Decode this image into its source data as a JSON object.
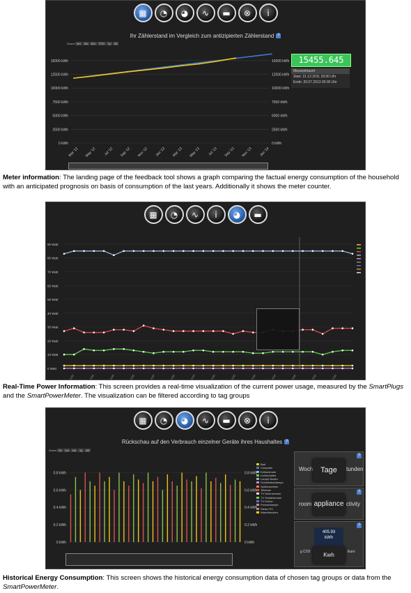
{
  "panel1": {
    "toolbar": [
      {
        "icon": "calendar-icon"
      },
      {
        "icon": "gauge-icon"
      },
      {
        "icon": "gauge-history-icon"
      },
      {
        "icon": "pulse-icon"
      },
      {
        "icon": "plug-icon"
      },
      {
        "icon": "cancel-icon"
      },
      {
        "icon": "info-icon"
      }
    ],
    "title": "Ihr Zählerstand im Vergleich zum antizipierten Zählerstand",
    "zoom_label": "Zoom",
    "counter": "15455.645",
    "period_label": "Messzeitraum",
    "start": "Start: 21.12.2011 18:00 Uhr",
    "end": "Ende: 20.07.2013 00:00 Uhr",
    "caption_bold": "Meter information",
    "caption_text": ": The landing page of the feedback tool shows a graph comparing the factual energy consumption of the household with an anticipated prognosis on basis of consumption of the last years. Additionally it shows the meter counter."
  },
  "panel2": {
    "toolbar": [
      {
        "icon": "calendar-icon"
      },
      {
        "icon": "gauge-icon"
      },
      {
        "icon": "pulse-icon"
      },
      {
        "icon": "info-icon"
      },
      {
        "icon": "gauge-history-icon"
      },
      {
        "icon": "plug-icon"
      }
    ],
    "caption_bold": "Real-Time Power Information",
    "caption_text_1": ": This screen provides a real-time visualization of the current power usage, measured by the ",
    "caption_italic_1": "SmartPlugs",
    "caption_text_2": " and the ",
    "caption_italic_2": "SmartPowerMeter",
    "caption_text_3": ". The visualization can be filtered according to tag groups"
  },
  "panel3": {
    "toolbar": [
      {
        "icon": "calendar-icon"
      },
      {
        "icon": "gauge-icon"
      },
      {
        "icon": "gauge-history-icon"
      },
      {
        "icon": "pulse-icon"
      },
      {
        "icon": "plug-icon"
      },
      {
        "icon": "cancel-icon"
      },
      {
        "icon": "info-icon"
      }
    ],
    "title": "Rückschau auf den Verbrauch einzelner Geräte ihres Haushaltes",
    "zoom_label": "Zoom",
    "tab_left": "Woche",
    "tab_main": "Tage",
    "tab_right": "tunden",
    "group_left": "room",
    "group_main": "appliance",
    "group_right": "ctivity",
    "value": "405.93",
    "value_unit": "kWh",
    "unit_left": "g CO2",
    "unit_main": "Kwh",
    "unit_right": "Euro",
    "legend": [
      "Bad",
      "Computer",
      "Kühlschrank",
      "Lichtschalter",
      "Lampe Boden",
      "Schreibtischlampe",
      "Spülmaschine",
      "Telefone",
      "TV Wohnzimmer",
      "TV Schlafzimmer",
      "TV Küche",
      "Fernsehlampe",
      "Steam PC",
      "Waschbecken"
    ],
    "caption_bold": "Historical Energy Consumption",
    "caption_text": ": This screen shows the historical energy consumption data of chosen tag groups or data from the ",
    "caption_italic": "SmartPowerMeter",
    "caption_end": "."
  },
  "chart_data": [
    {
      "type": "line",
      "title": "Ihr Zählerstand im Vergleich zum antizipierten Zählerstand",
      "y_ticks": [
        "0 kWh",
        "2500 kWh",
        "5000 kWh",
        "7500 kWh",
        "10000 kWh",
        "12500 kWh",
        "15000 kWh"
      ],
      "x_ticks": [
        "Mar '12",
        "May '12",
        "Jul '12",
        "Sep '12",
        "Nov '12",
        "Jan '13",
        "Mar '13",
        "May '13",
        "Jul '13",
        "Sep '13",
        "Nov '13",
        "Jan '14"
      ],
      "ylim": [
        0,
        17000
      ],
      "series": [
        {
          "color": "#3a7bd5",
          "values": [
            11800,
            12200,
            12600,
            13000,
            13400,
            13800,
            14200,
            14600,
            15000,
            15400,
            15800,
            16200
          ]
        },
        {
          "color": "#f0c419",
          "values": [
            11800,
            12150,
            12550,
            12950,
            13300,
            13650,
            14050,
            14400,
            14900,
            15455
          ]
        }
      ]
    },
    {
      "type": "line",
      "y_ticks": [
        "0 Watt",
        "10 Watt",
        "20 Watt",
        "30 Watt",
        "40 Watt",
        "50 Watt",
        "60 Watt",
        "70 Watt",
        "80 Watt",
        "90 Watt"
      ],
      "ylim": [
        0,
        95
      ],
      "series": [
        {
          "color": "#9ab4e0",
          "values": [
            83,
            85,
            85,
            85,
            85,
            82,
            85,
            85,
            85,
            85,
            85,
            85,
            85,
            85,
            85,
            85,
            85,
            85,
            85,
            85,
            85,
            85,
            85,
            85,
            85,
            85,
            85,
            85,
            85,
            83
          ]
        },
        {
          "color": "#e0474c",
          "values": [
            27,
            29,
            26,
            26,
            26,
            28,
            28,
            27,
            31,
            29,
            28,
            27,
            27,
            27,
            27,
            27,
            27,
            25,
            27,
            26,
            26,
            28,
            27,
            27,
            28,
            28,
            25,
            29,
            29,
            29
          ]
        },
        {
          "color": "#5fd14d",
          "values": [
            10,
            10,
            14,
            13,
            13,
            14,
            14,
            13,
            12,
            11,
            12,
            12,
            12,
            13,
            13,
            12,
            12,
            12,
            12,
            11,
            11,
            12,
            12,
            12,
            12,
            12,
            10,
            12,
            13,
            13
          ]
        },
        {
          "color": "#f0c419",
          "values": [
            2,
            2,
            2,
            2,
            2,
            2,
            2,
            2,
            2,
            2,
            2,
            2,
            2,
            2,
            2,
            2,
            2,
            2,
            2,
            2,
            2,
            2,
            2,
            2,
            2,
            2,
            2,
            2,
            2,
            2
          ]
        },
        {
          "color": "#cc88dd",
          "values": [
            0,
            0,
            0,
            0,
            0,
            0,
            0,
            0,
            0,
            0,
            0,
            0,
            0,
            0,
            0,
            0,
            0,
            0,
            0,
            0,
            0,
            0,
            0,
            0,
            0,
            0,
            0,
            0,
            0,
            0
          ]
        }
      ]
    },
    {
      "type": "bar",
      "title": "Rückschau auf den Verbrauch einzelner Geräte ihres Haushaltes",
      "y_ticks": [
        "0 kWh",
        "0.2 kWh",
        "0.4 kWh",
        "0.6 kWh",
        "0.8 kWh"
      ],
      "ylim": [
        0,
        0.9
      ],
      "values": [
        0.55,
        0.75,
        0.6,
        0.8,
        0.7,
        0.65,
        0.8,
        0.7,
        0.75,
        0.6,
        0.8,
        0.7,
        0.65,
        0.78,
        0.72,
        0.68,
        0.8,
        0.7,
        0.75,
        0.6,
        0.78,
        0.7,
        0.65,
        0.8,
        0.72,
        0.7,
        0.76,
        0.62,
        0.8,
        0.7,
        0.74,
        0.68,
        0.78,
        0.66,
        0.72,
        0.7
      ]
    }
  ]
}
